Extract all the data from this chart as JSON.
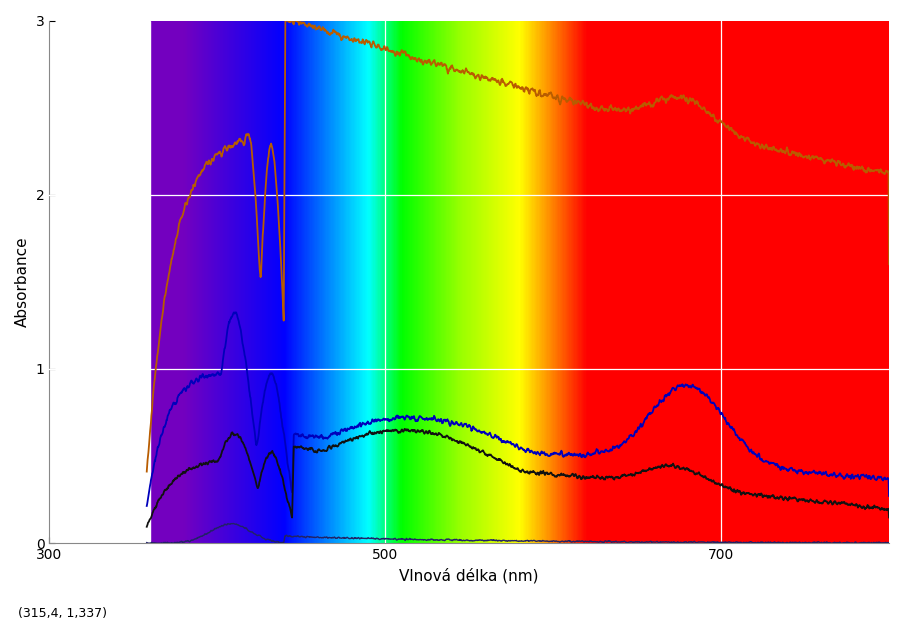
{
  "xlim": [
    300,
    800
  ],
  "ylim": [
    0,
    3
  ],
  "xlabel": "Vlnová délka (nm)",
  "ylabel": "Absorbance",
  "coord_label": "(315,4, 1,337)",
  "xticks": [
    300,
    500,
    700
  ],
  "yticks": [
    0,
    1,
    2,
    3
  ],
  "spectrum_start_nm": 360,
  "spectrum_end_nm": 800,
  "figsize": [
    9.04,
    6.23
  ],
  "dpi": 100
}
